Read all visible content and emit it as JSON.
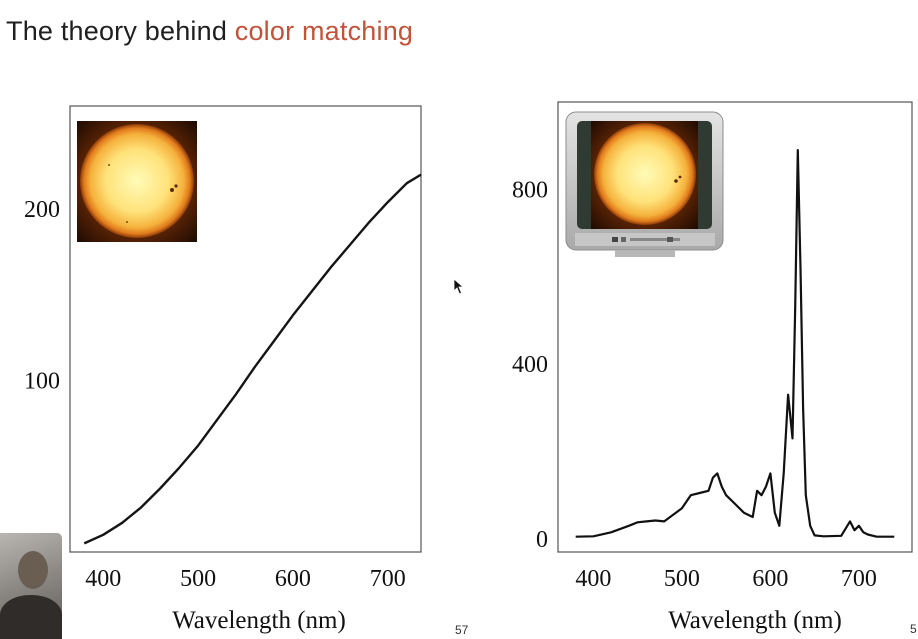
{
  "slide": {
    "title_plain": "The theory behind ",
    "title_accent": "color matching",
    "page_number": "57",
    "corner_mark": "5",
    "accent_color": "#c0533a"
  },
  "chart_data": [
    {
      "type": "line",
      "title": "",
      "xlabel": "Wavelength (nm)",
      "ylabel": "",
      "xlim": [
        365,
        735
      ],
      "ylim": [
        0,
        260
      ],
      "xticks": [
        400,
        500,
        600,
        700
      ],
      "yticks": [
        100,
        200
      ],
      "grid": false,
      "inset_icon": "sun-photo",
      "series": [
        {
          "x": [
            380,
            400,
            420,
            440,
            460,
            480,
            500,
            520,
            540,
            560,
            580,
            600,
            620,
            640,
            660,
            680,
            700,
            720,
            735
          ],
          "y": [
            5,
            10,
            17,
            26,
            37,
            49,
            62,
            77,
            92,
            108,
            123,
            138,
            152,
            166,
            179,
            192,
            204,
            215,
            220
          ]
        }
      ]
    },
    {
      "type": "line",
      "title": "",
      "xlabel": "Wavelength (nm)",
      "ylabel": "",
      "xlim": [
        360,
        760
      ],
      "ylim": [
        -30,
        1000
      ],
      "xticks": [
        400,
        500,
        600,
        700
      ],
      "yticks": [
        0,
        400,
        800
      ],
      "grid": false,
      "inset_icon": "tv-with-sun-photo",
      "series": [
        {
          "x": [
            380,
            400,
            420,
            440,
            450,
            460,
            470,
            480,
            490,
            500,
            510,
            520,
            530,
            535,
            540,
            545,
            550,
            560,
            570,
            580,
            585,
            590,
            595,
            600,
            605,
            610,
            615,
            620,
            622,
            625,
            628,
            631,
            634,
            637,
            640,
            645,
            650,
            660,
            680,
            690,
            695,
            700,
            705,
            710,
            720,
            740
          ],
          "y": [
            5,
            6,
            15,
            30,
            38,
            40,
            42,
            40,
            55,
            70,
            100,
            105,
            110,
            140,
            150,
            120,
            100,
            80,
            60,
            50,
            110,
            100,
            120,
            150,
            60,
            30,
            150,
            330,
            290,
            230,
            530,
            890,
            620,
            300,
            100,
            30,
            8,
            6,
            7,
            40,
            20,
            30,
            15,
            10,
            5,
            5
          ]
        }
      ]
    }
  ]
}
